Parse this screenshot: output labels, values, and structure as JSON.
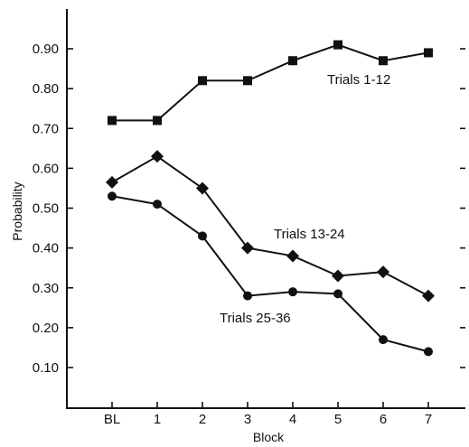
{
  "chart_data": {
    "type": "line",
    "xlabel": "Block",
    "ylabel": "Probability",
    "categories": [
      "BL",
      "1",
      "2",
      "3",
      "4",
      "5",
      "6",
      "7"
    ],
    "ylim": [
      0.0,
      1.0
    ],
    "yticks": [
      0.1,
      0.2,
      0.3,
      0.4,
      0.5,
      0.6,
      0.7,
      0.8,
      0.9
    ],
    "ytick_labels": [
      "0.10",
      "0.20",
      "0.30",
      "0.40",
      "0.50",
      "0.60",
      "0.70",
      "0.80",
      "0.90"
    ],
    "grid": false,
    "series": [
      {
        "name": "Trials 1-12",
        "marker": "square",
        "values": [
          0.72,
          0.72,
          0.82,
          0.82,
          0.87,
          0.91,
          0.87,
          0.89
        ]
      },
      {
        "name": "Trials 13-24",
        "marker": "diamond",
        "values": [
          0.565,
          0.63,
          0.55,
          0.4,
          0.38,
          0.33,
          0.34,
          0.28
        ]
      },
      {
        "name": "Trials 25-36",
        "marker": "circle",
        "values": [
          0.53,
          0.51,
          0.43,
          0.28,
          0.29,
          0.285,
          0.17,
          0.14
        ]
      }
    ]
  }
}
